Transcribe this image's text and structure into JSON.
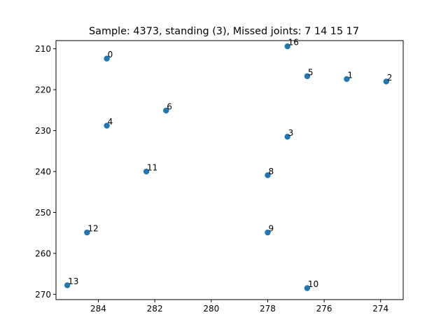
{
  "chart_data": {
    "type": "scatter",
    "title": "Sample: 4373, standing (3), Missed joints: 7  14  15  17",
    "xlabel": "",
    "ylabel": "",
    "x_inverted": true,
    "y_inverted": true,
    "xlim": [
      285.5,
      273.2
    ],
    "ylim": [
      271.3,
      208.0
    ],
    "xticks": [
      284,
      282,
      280,
      278,
      276,
      274
    ],
    "yticks": [
      210,
      220,
      230,
      240,
      250,
      260,
      270
    ],
    "grid": false,
    "marker_color": "#1f77b4",
    "points": [
      {
        "label": "0",
        "x": 283.7,
        "y": 212.4
      },
      {
        "label": "1",
        "x": 275.2,
        "y": 217.4
      },
      {
        "label": "2",
        "x": 273.8,
        "y": 218.0
      },
      {
        "label": "3",
        "x": 277.3,
        "y": 231.5
      },
      {
        "label": "4",
        "x": 283.7,
        "y": 228.8
      },
      {
        "label": "5",
        "x": 276.6,
        "y": 216.7
      },
      {
        "label": "6",
        "x": 281.6,
        "y": 225.1
      },
      {
        "label": "8",
        "x": 278.0,
        "y": 240.9
      },
      {
        "label": "9",
        "x": 278.0,
        "y": 254.9
      },
      {
        "label": "10",
        "x": 276.6,
        "y": 268.5
      },
      {
        "label": "11",
        "x": 282.3,
        "y": 240.0
      },
      {
        "label": "12",
        "x": 284.4,
        "y": 254.9
      },
      {
        "label": "13",
        "x": 285.1,
        "y": 267.8
      },
      {
        "label": "16",
        "x": 277.3,
        "y": 209.4
      }
    ]
  }
}
